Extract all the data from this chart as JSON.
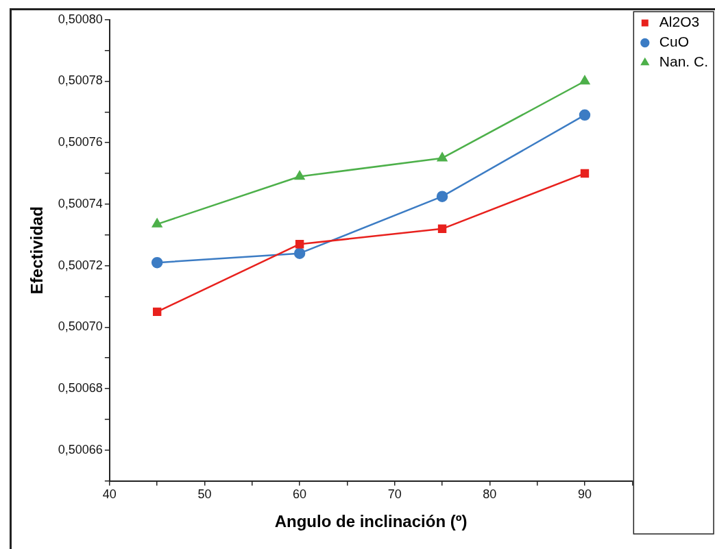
{
  "chart_data": {
    "type": "line",
    "xlabel": "Angulo de inclinación (º)",
    "ylabel": "Efectividad",
    "x": [
      45,
      60,
      75,
      90
    ],
    "series": [
      {
        "name": "Al2O3",
        "color": "#e8211d",
        "marker": "square",
        "values": [
          0.500705,
          0.500727,
          0.500732,
          0.50075
        ]
      },
      {
        "name": "CuO",
        "color": "#3c7cc4",
        "marker": "circle",
        "values": [
          0.500721,
          0.500724,
          0.5007425,
          0.500769
        ]
      },
      {
        "name": "Nan. C.",
        "color": "#4db04a",
        "marker": "triangle",
        "values": [
          0.5007335,
          0.500749,
          0.500755,
          0.50078
        ]
      }
    ],
    "xlim": [
      40,
      95
    ],
    "xticks": [
      40,
      {
        "value": 45,
        "label": null
      },
      50,
      {
        "value": 55,
        "label": null
      },
      60,
      {
        "value": 65,
        "label": null
      },
      70,
      {
        "value": 75,
        "label": null
      },
      80,
      {
        "value": 85,
        "label": null
      },
      90,
      {
        "value": 95,
        "label": null
      }
    ],
    "ylim": [
      0.50065,
      0.5008
    ],
    "yticks": [
      {
        "value": 0.50065,
        "label": null
      },
      {
        "value": 0.50066,
        "label": "0,50066"
      },
      {
        "value": 0.50067,
        "label": null
      },
      {
        "value": 0.50068,
        "label": "0,50068"
      },
      {
        "value": 0.50069,
        "label": null
      },
      {
        "value": 0.5007,
        "label": "0,50070"
      },
      {
        "value": 0.50071,
        "label": null
      },
      {
        "value": 0.50072,
        "label": "0,50072"
      },
      {
        "value": 0.50073,
        "label": null
      },
      {
        "value": 0.50074,
        "label": "0,50074"
      },
      {
        "value": 0.50075,
        "label": null
      },
      {
        "value": 0.50076,
        "label": "0,50076"
      },
      {
        "value": 0.50077,
        "label": null
      },
      {
        "value": 0.50078,
        "label": "0,50078"
      },
      {
        "value": 0.50079,
        "label": null
      },
      {
        "value": 0.5008,
        "label": "0,50080"
      }
    ],
    "grid": false,
    "legend": "top right",
    "line_style": "solid"
  }
}
